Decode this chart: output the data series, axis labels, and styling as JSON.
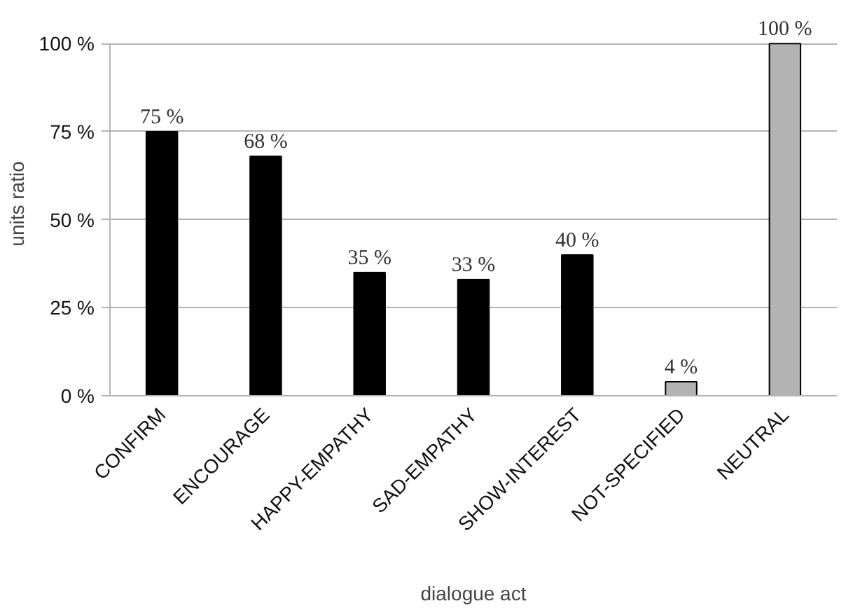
{
  "chart_data": {
    "type": "bar",
    "categories": [
      "CONFIRM",
      "ENCOURAGE",
      "HAPPY-EMPATHY",
      "SAD-EMPATHY",
      "SHOW-INTEREST",
      "NOT-SPECIFIED",
      "NEUTRAL"
    ],
    "values": [
      75,
      68,
      35,
      33,
      40,
      4,
      100
    ],
    "colors": [
      "#000000",
      "#000000",
      "#000000",
      "#000000",
      "#000000",
      "#b3b3b3",
      "#b3b3b3"
    ],
    "value_labels": [
      "75 %",
      "68 %",
      "35 %",
      "33 %",
      "40 %",
      "4 %",
      "100 %"
    ],
    "xlabel": "dialogue act",
    "ylabel": "units ratio",
    "ylim": [
      0,
      100
    ],
    "yticks": [
      {
        "value": 0,
        "label": "0 %"
      },
      {
        "value": 25,
        "label": "25 %"
      },
      {
        "value": 50,
        "label": "50 %"
      },
      {
        "value": 75,
        "label": "75 %"
      },
      {
        "value": 100,
        "label": "100 %"
      }
    ],
    "grid": "y"
  }
}
